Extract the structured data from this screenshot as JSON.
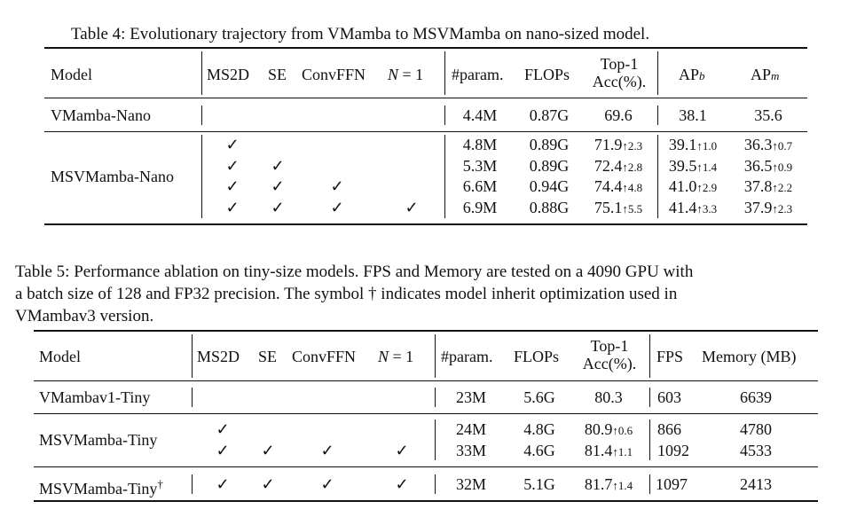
{
  "table4": {
    "caption": "Table 4: Evolutionary trajectory from VMamba to MSVMamba on nano-sized model.",
    "headers": {
      "model": "Model",
      "ms2d": "MS2D",
      "se": "SE",
      "convffn": "ConvFFN",
      "n_var": "N",
      "n_eq": " = 1",
      "param": "#param.",
      "flops": "FLOPs",
      "top1_line1": "Top-1",
      "top1_line2": "Acc(%).",
      "apb_base": "AP",
      "apb_sub": "b",
      "apm_base": "AP",
      "apm_sub": "m"
    },
    "rows": [
      {
        "model": "VMamba-Nano",
        "param": "4.4M",
        "flops": "0.87G",
        "top1": "69.6",
        "top1_delta": "",
        "apb": "38.1",
        "apb_delta": "",
        "apm": "35.6",
        "apm_delta": ""
      },
      {
        "model": "MSVMamba-Nano",
        "param": "4.8M",
        "flops": "0.89G",
        "top1": "71.9",
        "top1_delta": "↑2.3",
        "apb": "39.1",
        "apb_delta": "↑1.0",
        "apm": "36.3",
        "apm_delta": "↑0.7"
      },
      {
        "model": "",
        "param": "5.3M",
        "flops": "0.89G",
        "top1": "72.4",
        "top1_delta": "↑2.8",
        "apb": "39.5",
        "apb_delta": "↑1.4",
        "apm": "36.5",
        "apm_delta": "↑0.9"
      },
      {
        "model": "",
        "param": "6.6M",
        "flops": "0.94G",
        "top1": "74.4",
        "top1_delta": "↑4.8",
        "apb": "41.0",
        "apb_delta": "↑2.9",
        "apm": "37.8",
        "apm_delta": "↑2.2"
      },
      {
        "model": "",
        "param": "6.9M",
        "flops": "0.88G",
        "top1": "75.1",
        "top1_delta": "↑5.5",
        "apb": "41.4",
        "apb_delta": "↑3.3",
        "apm": "37.9",
        "apm_delta": "↑2.3"
      }
    ]
  },
  "table5": {
    "caption_lines": [
      "Table 5: Performance ablation on tiny-size models. FPS and Memory are tested on a 4090 GPU with",
      "a batch size of 128 and FP32 precision. The symbol † indicates model inherit optimization used in",
      "VMambav3 version."
    ],
    "headers": {
      "model": "Model",
      "ms2d": "MS2D",
      "se": "SE",
      "convffn": "ConvFFN",
      "n_var": "N",
      "n_eq": " = 1",
      "param": "#param.",
      "flops": "FLOPs",
      "top1_line1": "Top-1",
      "top1_line2": "Acc(%).",
      "fps": "FPS",
      "memory": "Memory (MB)"
    },
    "rows": [
      {
        "model": "VMambav1-Tiny",
        "param": "23M",
        "flops": "5.6G",
        "top1": "80.3",
        "top1_delta": "",
        "fps": "603",
        "memory": "6639"
      },
      {
        "model": "MSVMamba-Tiny",
        "param": "24M",
        "flops": "4.8G",
        "top1": "80.9",
        "top1_delta": "↑0.6",
        "fps": "866",
        "memory": "4780"
      },
      {
        "model": "",
        "param": "33M",
        "flops": "4.6G",
        "top1": "81.4",
        "top1_delta": "↑1.1",
        "fps": "1092",
        "memory": "4533"
      },
      {
        "model": "MSVMamba-Tiny",
        "model_sup": "†",
        "param": "32M",
        "flops": "5.1G",
        "top1": "81.7",
        "top1_delta": "↑1.4",
        "fps": "1097",
        "memory": "2413"
      }
    ]
  },
  "check_symbol": "✓"
}
